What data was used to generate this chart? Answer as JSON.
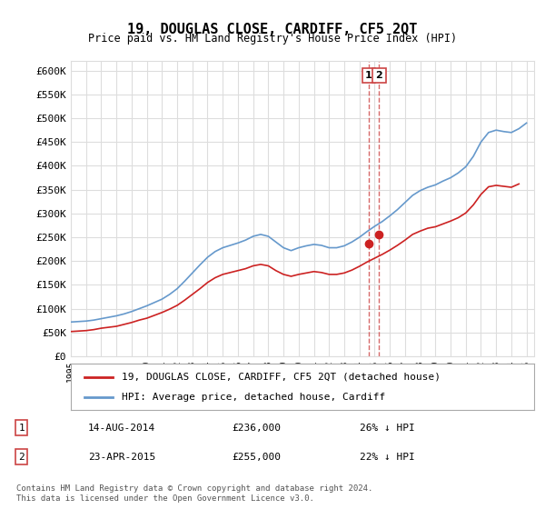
{
  "title": "19, DOUGLAS CLOSE, CARDIFF, CF5 2QT",
  "subtitle": "Price paid vs. HM Land Registry's House Price Index (HPI)",
  "ylabel_ticks": [
    "£0",
    "£50K",
    "£100K",
    "£150K",
    "£200K",
    "£250K",
    "£300K",
    "£350K",
    "£400K",
    "£450K",
    "£500K",
    "£550K",
    "£600K"
  ],
  "ytick_values": [
    0,
    50000,
    100000,
    150000,
    200000,
    250000,
    300000,
    350000,
    400000,
    450000,
    500000,
    550000,
    600000
  ],
  "ylim": [
    0,
    620000
  ],
  "xlim_start": 1995.0,
  "xlim_end": 2025.5,
  "hpi_color": "#6699cc",
  "price_color": "#cc2222",
  "dashed_line_color": "#cc4444",
  "grid_color": "#dddddd",
  "background_color": "#ffffff",
  "legend_label_price": "19, DOUGLAS CLOSE, CARDIFF, CF5 2QT (detached house)",
  "legend_label_hpi": "HPI: Average price, detached house, Cardiff",
  "transaction1_date": "14-AUG-2014",
  "transaction1_price": 236000,
  "transaction1_note": "26% ↓ HPI",
  "transaction2_date": "23-APR-2015",
  "transaction2_price": 255000,
  "transaction2_note": "22% ↓ HPI",
  "footnote": "Contains HM Land Registry data © Crown copyright and database right 2024.\nThis data is licensed under the Open Government Licence v3.0.",
  "marker1_x": 2014.6,
  "marker2_x": 2015.3,
  "hpi_years": [
    1995,
    1995.5,
    1996,
    1996.5,
    1997,
    1997.5,
    1998,
    1998.5,
    1999,
    1999.5,
    2000,
    2000.5,
    2001,
    2001.5,
    2002,
    2002.5,
    2003,
    2003.5,
    2004,
    2004.5,
    2005,
    2005.5,
    2006,
    2006.5,
    2007,
    2007.5,
    2008,
    2008.5,
    2009,
    2009.5,
    2010,
    2010.5,
    2011,
    2011.5,
    2012,
    2012.5,
    2013,
    2013.5,
    2014,
    2014.5,
    2015,
    2015.5,
    2016,
    2016.5,
    2017,
    2017.5,
    2018,
    2018.5,
    2019,
    2019.5,
    2020,
    2020.5,
    2021,
    2021.5,
    2022,
    2022.5,
    2023,
    2023.5,
    2024,
    2024.5,
    2025
  ],
  "hpi_values": [
    72000,
    73000,
    74000,
    76000,
    79000,
    82000,
    85000,
    89000,
    94000,
    100000,
    106000,
    113000,
    120000,
    130000,
    142000,
    158000,
    175000,
    192000,
    208000,
    220000,
    228000,
    233000,
    238000,
    244000,
    252000,
    256000,
    252000,
    240000,
    228000,
    222000,
    228000,
    232000,
    235000,
    233000,
    228000,
    228000,
    232000,
    240000,
    250000,
    262000,
    273000,
    283000,
    295000,
    308000,
    323000,
    338000,
    348000,
    355000,
    360000,
    368000,
    375000,
    385000,
    398000,
    420000,
    450000,
    470000,
    475000,
    472000,
    470000,
    478000,
    490000
  ],
  "price_years": [
    1995,
    1995.5,
    1996,
    1996.5,
    1997,
    1997.5,
    1998,
    1998.5,
    1999,
    1999.5,
    2000,
    2000.5,
    2001,
    2001.5,
    2002,
    2002.5,
    2003,
    2003.5,
    2004,
    2004.5,
    2005,
    2005.5,
    2006,
    2006.5,
    2007,
    2007.5,
    2008,
    2008.5,
    2009,
    2009.5,
    2010,
    2010.5,
    2011,
    2011.5,
    2012,
    2012.5,
    2013,
    2013.5,
    2014,
    2014.5,
    2015,
    2015.5,
    2016,
    2016.5,
    2017,
    2017.5,
    2018,
    2018.5,
    2019,
    2019.5,
    2020,
    2020.5,
    2021,
    2021.5,
    2022,
    2022.5,
    2023,
    2023.5,
    2024,
    2024.5
  ],
  "price_values": [
    52000,
    53000,
    54000,
    56000,
    59000,
    61000,
    63000,
    67000,
    71000,
    76000,
    80000,
    86000,
    92000,
    99000,
    107000,
    118000,
    130000,
    142000,
    155000,
    165000,
    172000,
    176000,
    180000,
    184000,
    190000,
    193000,
    190000,
    180000,
    172000,
    168000,
    172000,
    175000,
    178000,
    176000,
    172000,
    172000,
    175000,
    181000,
    189000,
    198000,
    206000,
    214000,
    223000,
    233000,
    244000,
    256000,
    263000,
    269000,
    272000,
    278000,
    284000,
    291000,
    301000,
    318000,
    340000,
    356000,
    359000,
    357000,
    355000,
    362000
  ]
}
